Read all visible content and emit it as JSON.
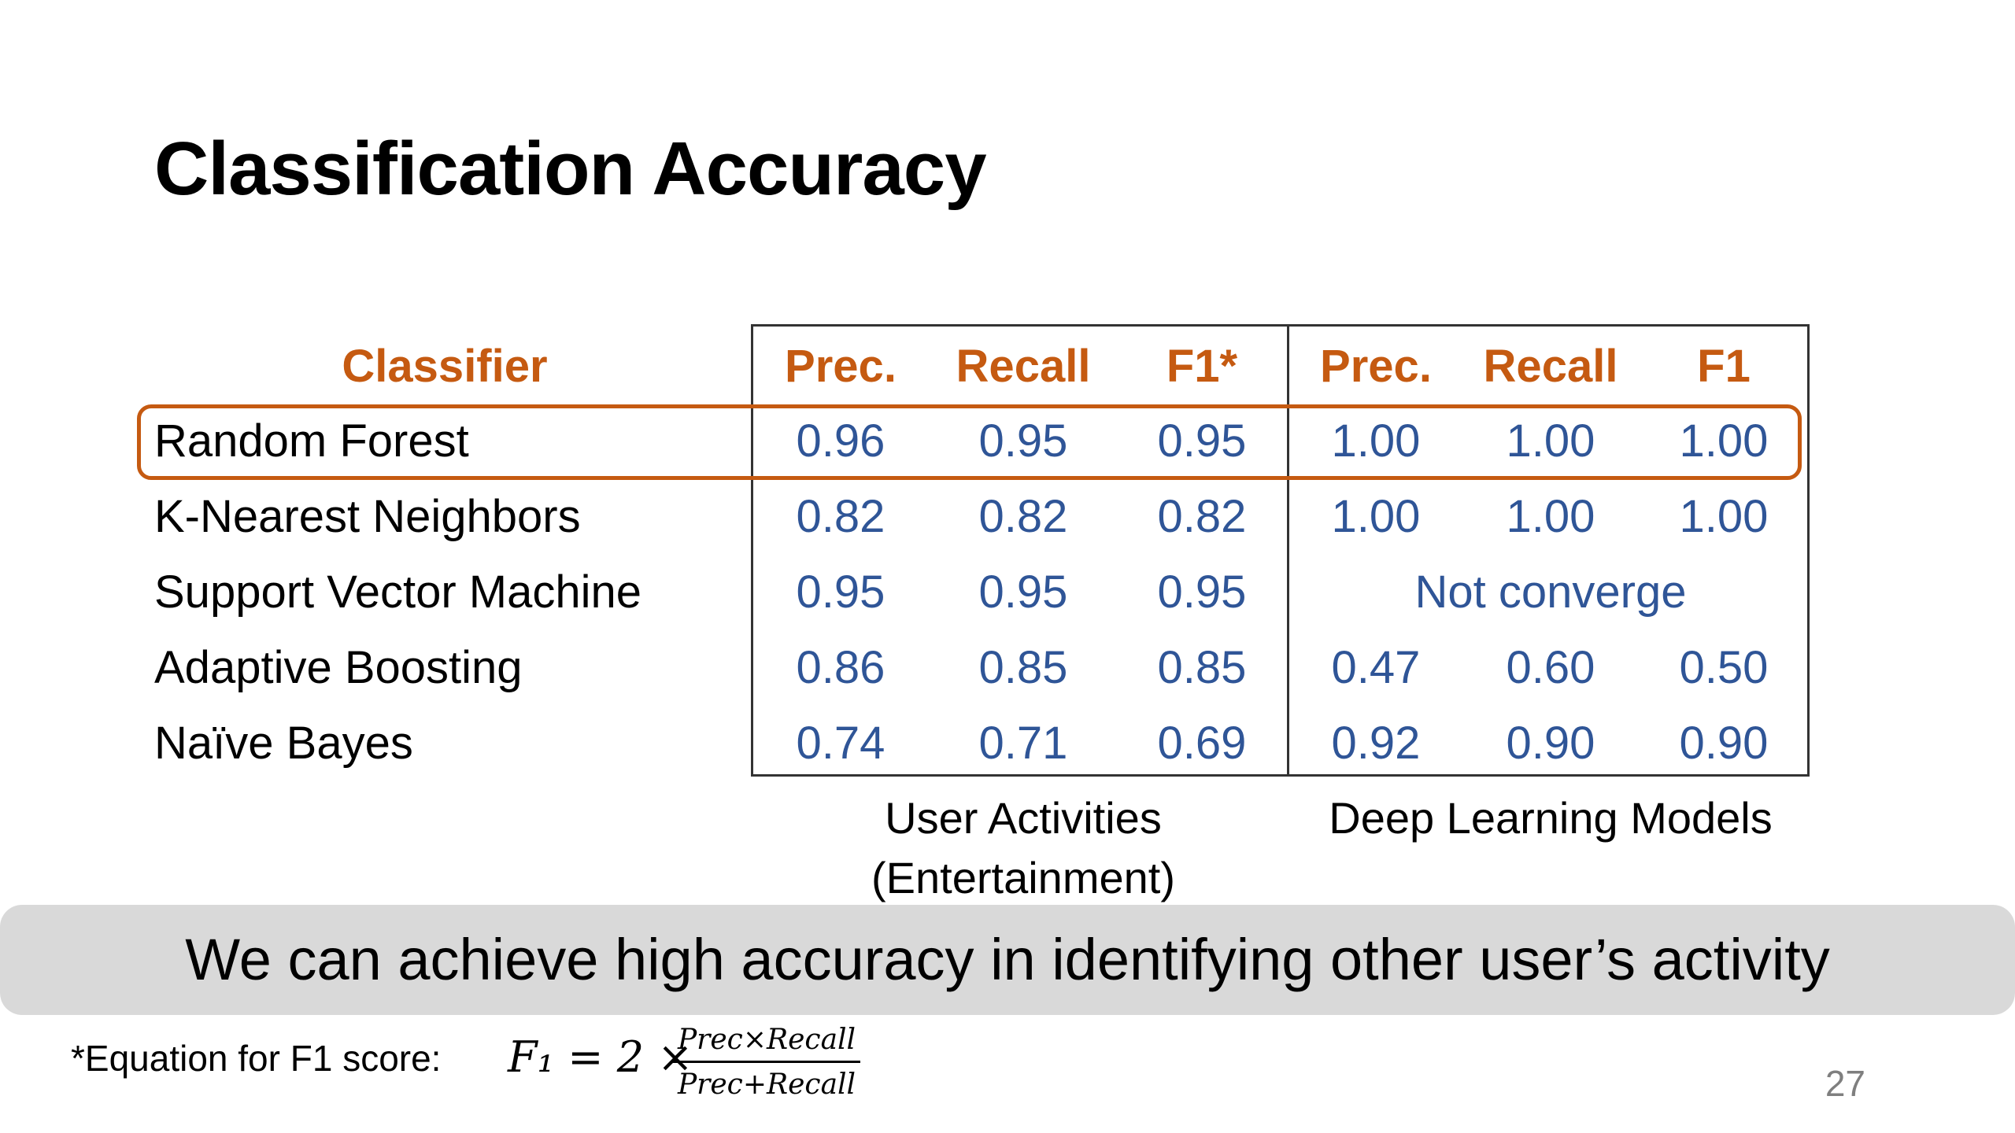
{
  "slide": {
    "title": "Classification Accuracy",
    "page_number": "27"
  },
  "table": {
    "classifier_header": "Classifier",
    "user_activities_headers": [
      "Prec.",
      "Recall",
      "F1*"
    ],
    "deep_learning_headers": [
      "Prec.",
      "Recall",
      "F1"
    ],
    "rows": [
      {
        "classifier": "Random Forest",
        "user_activities": [
          "0.96",
          "0.95",
          "0.95"
        ],
        "deep_learning": [
          "1.00",
          "1.00",
          "1.00"
        ],
        "highlighted": true
      },
      {
        "classifier": "K-Nearest Neighbors",
        "user_activities": [
          "0.82",
          "0.82",
          "0.82"
        ],
        "deep_learning": [
          "1.00",
          "1.00",
          "1.00"
        ]
      },
      {
        "classifier": "Support Vector Machine",
        "user_activities": [
          "0.95",
          "0.95",
          "0.95"
        ],
        "deep_learning_note": "Not converge"
      },
      {
        "classifier": "Adaptive Boosting",
        "user_activities": [
          "0.86",
          "0.85",
          "0.85"
        ],
        "deep_learning": [
          "0.47",
          "0.60",
          "0.50"
        ]
      },
      {
        "classifier": "Naïve Bayes",
        "user_activities": [
          "0.74",
          "0.71",
          "0.69"
        ],
        "deep_learning": [
          "0.92",
          "0.90",
          "0.90"
        ]
      }
    ],
    "group_labels": {
      "user_activities_line1": "User Activities",
      "user_activities_line2": "(Entertainment)",
      "deep_learning": "Deep Learning Models"
    }
  },
  "banner": {
    "text": "We can achieve high accuracy in identifying other user’s activity"
  },
  "footnote": {
    "label": "*Equation for F1 score:",
    "lhs": "F₁ = 2 ×",
    "numerator": "Prec×Recall",
    "denominator": "Prec+Recall"
  },
  "colors": {
    "header_orange": "#c55a11",
    "value_blue": "#2f5597",
    "banner_gray": "#d9d9d9",
    "page_number_gray": "#7f7f7f"
  }
}
